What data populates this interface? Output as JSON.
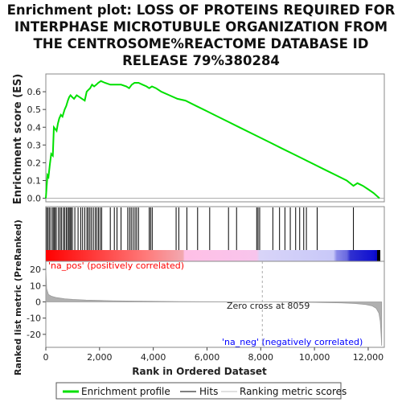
{
  "chart_data": {
    "type": "line",
    "title": "Enrichment plot: LOSS OF PROTEINS REQUIRED FOR INTERPHASE MICROTUBULE ORGANIZATION FROM THE CENTROSOME%REACTOME DATABASE ID RELEASE 79%380284",
    "title_lines": [
      "Enrichment plot: LOSS OF PROTEINS REQUIRED FOR",
      "INTERPHASE MICROTUBULE ORGANIZATION FROM",
      "THE CENTROSOME%REACTOME DATABASE ID",
      "RELEASE 79%380284"
    ],
    "xlabel": "Rank in Ordered Dataset",
    "top_ylabel": "Enrichment score (ES)",
    "bottom_ylabel": "Ranked list metric (PreRanked)",
    "xlim": [
      0,
      12600
    ],
    "x_ticks": [
      0,
      2000,
      4000,
      6000,
      8000,
      10000,
      12000
    ],
    "x_tick_labels": [
      "0",
      "2,000",
      "4,000",
      "6,000",
      "8,000",
      "10,000",
      "12,000"
    ],
    "es_ylim": [
      -0.02,
      0.7
    ],
    "es_ticks": [
      0.0,
      0.1,
      0.2,
      0.3,
      0.4,
      0.5,
      0.6
    ],
    "es_tick_labels": [
      "0.0",
      "0.1",
      "0.2",
      "0.3",
      "0.4",
      "0.5",
      "0.6"
    ],
    "metric_ylim": [
      -28,
      25
    ],
    "metric_ticks": [
      20,
      10,
      0,
      -10,
      -20
    ],
    "metric_tick_labels": [
      "20",
      "10",
      "0",
      "-10",
      "-20"
    ],
    "enrichment_profile": {
      "name": "Enrichment profile",
      "color": "#00e000",
      "x": [
        0,
        60,
        100,
        150,
        200,
        260,
        300,
        350,
        400,
        450,
        500,
        560,
        620,
        700,
        760,
        820,
        870,
        920,
        980,
        1050,
        1150,
        1250,
        1350,
        1450,
        1520,
        1580,
        1650,
        1720,
        1800,
        1880,
        1950,
        2050,
        2200,
        2400,
        2600,
        2800,
        3000,
        3100,
        3200,
        3300,
        3450,
        3600,
        3750,
        3850,
        3950,
        4100,
        4300,
        4600,
        4900,
        5200,
        5600,
        6000,
        6400,
        6800,
        7200,
        7600,
        8000,
        8400,
        8800,
        9200,
        9600,
        10000,
        10400,
        10800,
        11200,
        11450,
        11600,
        11800,
        12000,
        12200,
        12420
      ],
      "y": [
        0.0,
        0.13,
        0.12,
        0.19,
        0.25,
        0.24,
        0.4,
        0.39,
        0.38,
        0.42,
        0.45,
        0.47,
        0.46,
        0.5,
        0.52,
        0.55,
        0.57,
        0.58,
        0.57,
        0.56,
        0.58,
        0.57,
        0.56,
        0.55,
        0.6,
        0.61,
        0.62,
        0.64,
        0.63,
        0.64,
        0.65,
        0.66,
        0.65,
        0.64,
        0.64,
        0.64,
        0.63,
        0.62,
        0.64,
        0.65,
        0.65,
        0.64,
        0.63,
        0.62,
        0.63,
        0.62,
        0.6,
        0.58,
        0.56,
        0.55,
        0.52,
        0.49,
        0.46,
        0.43,
        0.4,
        0.37,
        0.34,
        0.31,
        0.28,
        0.25,
        0.22,
        0.19,
        0.16,
        0.13,
        0.1,
        0.07,
        0.085,
        0.07,
        0.05,
        0.03,
        0.0
      ]
    },
    "hits": {
      "name": "Hits",
      "color": "#000000",
      "x": [
        30,
        80,
        130,
        190,
        260,
        300,
        340,
        390,
        470,
        530,
        580,
        650,
        700,
        760,
        810,
        860,
        900,
        940,
        990,
        1080,
        1200,
        1300,
        1370,
        1450,
        1530,
        1580,
        1640,
        1700,
        1770,
        1840,
        1900,
        1960,
        2020,
        2080,
        2400,
        2550,
        2650,
        2800,
        3050,
        3120,
        3180,
        3250,
        3320,
        3380,
        3450,
        3850,
        3900,
        3960,
        4850,
        4950,
        5250,
        5650,
        6100,
        6800,
        7100,
        7850,
        7900,
        7960,
        8450,
        8700,
        8900,
        9100,
        9300,
        9450,
        9600,
        9700,
        10100,
        11450
      ]
    },
    "ranking_metric": {
      "name": "Ranking metric scores",
      "color": "#b0b0b0",
      "x": [
        0,
        30,
        100,
        200,
        400,
        700,
        1000,
        1500,
        2000,
        2500,
        3000,
        4000,
        5000,
        6000,
        7000,
        8059,
        9000,
        10000,
        11000,
        11500,
        11900,
        12150,
        12300,
        12400,
        12450,
        12480,
        12500
      ],
      "y": [
        20,
        8,
        4.5,
        3.5,
        2.6,
        1.9,
        1.5,
        1.1,
        0.9,
        0.7,
        0.55,
        0.35,
        0.2,
        0.1,
        0.03,
        0.0,
        -0.1,
        -0.3,
        -0.6,
        -1.0,
        -1.6,
        -2.5,
        -4.0,
        -7.0,
        -12.0,
        -20.0,
        -27.0
      ]
    },
    "na_pos_label": "'na_pos' (positively correlated)",
    "na_neg_label": "'na_neg' (negatively correlated)",
    "na_pos_color": "#ff0000",
    "na_neg_color": "#0000ff",
    "zero_cross_label": "Zero cross at 8059",
    "zero_cross_x": 8059,
    "legend": {
      "placement": "bottom",
      "items": [
        "Enrichment profile",
        "Hits",
        "Ranking metric scores"
      ]
    },
    "grid": false
  }
}
